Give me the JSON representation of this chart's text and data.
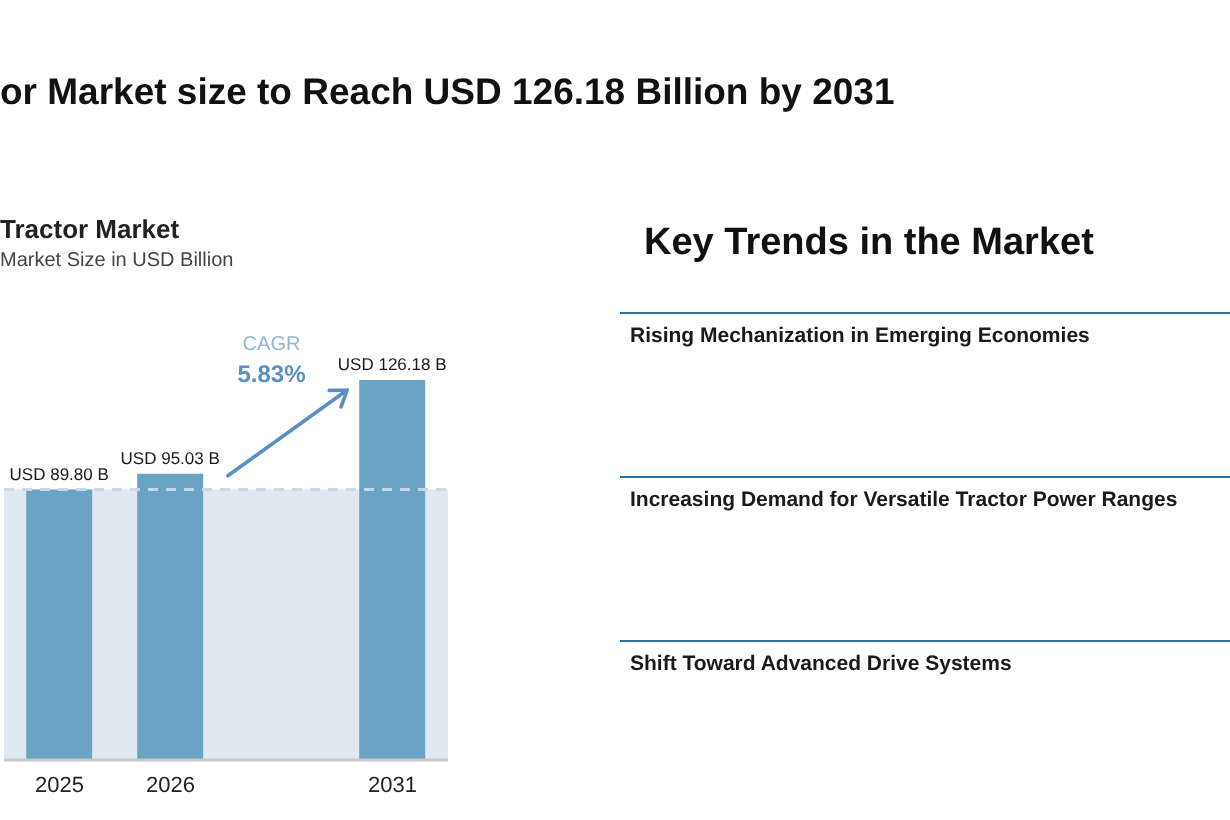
{
  "chart_data": [
    {
      "type": "bar",
      "title": "or Market size to Reach USD 126.18 Billion by 2031",
      "subtitle": "Tractor Market",
      "ylabel": "Market Size in USD Billion",
      "categories": [
        "2025",
        "2026",
        null,
        "2031"
      ],
      "values": [
        89.8,
        95.03,
        null,
        126.18
      ],
      "value_labels": [
        "USD 89.80 B",
        "USD 95.03 B",
        null,
        "USD 126.18 B"
      ],
      "color": "#6aa3c4",
      "annotations": [
        "CAGR",
        "5.83%"
      ],
      "ref_lines": [
        {
          "axis": "y",
          "value": 89.8,
          "color": "#c6d9e6",
          "line_style": "dashed"
        }
      ],
      "bands": [
        {
          "axis": "y",
          "from": 0,
          "to": 89.8,
          "color": "#e0e9f1"
        }
      ]
    },
    {
      "type": "other",
      "title": "Key Trends in the Market",
      "annotations": [
        "Rising Mechanization in Emerging Economies",
        "Increasing Demand for Versatile Tractor Power Ranges",
        "Shift Toward Advanced Drive Systems"
      ]
    }
  ]
}
